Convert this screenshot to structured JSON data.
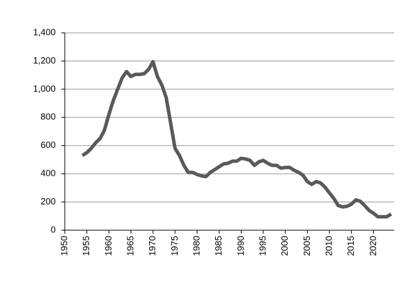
{
  "chart_data": {
    "type": "line",
    "x": [
      1954,
      1955,
      1956,
      1957,
      1958,
      1959,
      1960,
      1961,
      1962,
      1963,
      1964,
      1965,
      1966,
      1967,
      1968,
      1969,
      1970,
      1971,
      1972,
      1973,
      1974,
      1975,
      1976,
      1977,
      1978,
      1979,
      1980,
      1981,
      1982,
      1983,
      1984,
      1985,
      1986,
      1987,
      1988,
      1989,
      1990,
      1991,
      1992,
      1993,
      1994,
      1995,
      1996,
      1997,
      1998,
      1999,
      2000,
      2001,
      2002,
      2003,
      2004,
      2005,
      2006,
      2007,
      2008,
      2009,
      2010,
      2011,
      2012,
      2013,
      2014,
      2015,
      2016,
      2017,
      2018,
      2019,
      2020,
      2021,
      2022,
      2023,
      2024
    ],
    "values": [
      530,
      550,
      580,
      620,
      650,
      710,
      820,
      920,
      1000,
      1080,
      1125,
      1090,
      1105,
      1105,
      1110,
      1140,
      1195,
      1090,
      1030,
      940,
      760,
      580,
      530,
      460,
      410,
      410,
      395,
      385,
      380,
      410,
      430,
      450,
      470,
      475,
      490,
      490,
      510,
      505,
      495,
      460,
      485,
      495,
      475,
      460,
      460,
      440,
      445,
      445,
      425,
      410,
      390,
      345,
      325,
      345,
      335,
      305,
      265,
      225,
      175,
      165,
      170,
      185,
      215,
      205,
      175,
      140,
      120,
      95,
      95,
      95,
      115
    ],
    "color": "#595959",
    "xlim": [
      1950,
      2025
    ],
    "xticks": [
      1950,
      1955,
      1960,
      1965,
      1970,
      1975,
      1980,
      1985,
      1990,
      1995,
      2000,
      2005,
      2010,
      2015,
      2020
    ],
    "ylim": [
      0,
      1400
    ],
    "yticks": [
      0,
      200,
      400,
      600,
      800,
      {
        "value": 1000,
        "label": "1,000"
      },
      {
        "value": 1200,
        "label": "1,200"
      },
      {
        "value": 1400,
        "label": "1,400"
      }
    ],
    "grid": true
  }
}
